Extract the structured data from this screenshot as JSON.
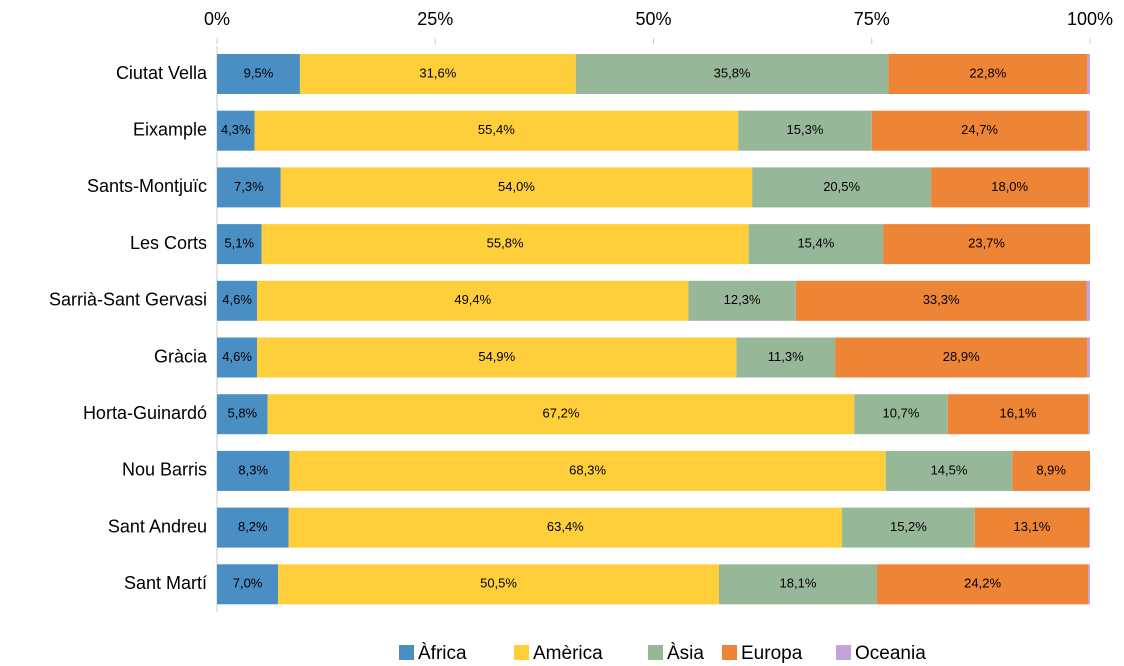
{
  "chart_data": {
    "type": "stacked-barh",
    "categories": [
      "Ciutat Vella",
      "Eixample",
      "Sants-Montjuïc",
      "Les Corts",
      "Sarrià-Sant Gervasi",
      "Gràcia",
      "Horta-Guinardó",
      "Nou Barris",
      "Sant Andreu",
      "Sant Martí"
    ],
    "series": [
      {
        "name": "Àfrica",
        "color": "#4a8fc3",
        "values": [
          9.5,
          4.3,
          7.3,
          5.1,
          4.6,
          4.6,
          5.8,
          8.3,
          8.2,
          7.0
        ],
        "value_labels": [
          "9,5%",
          "4,3%",
          "7,3%",
          "5,1%",
          "4,6%",
          "4,6%",
          "5,8%",
          "8,3%",
          "8,2%",
          "7,0%"
        ]
      },
      {
        "name": "Amèrica",
        "color": "#fecf3a",
        "values": [
          31.6,
          55.4,
          54.0,
          55.8,
          49.4,
          54.9,
          67.2,
          68.3,
          63.4,
          50.5
        ],
        "value_labels": [
          "31,6%",
          "55,4%",
          "54,0%",
          "55,8%",
          "49,4%",
          "54,9%",
          "67,2%",
          "68,3%",
          "63,4%",
          "50,5%"
        ]
      },
      {
        "name": "Àsia",
        "color": "#97b799",
        "values": [
          35.8,
          15.3,
          20.5,
          15.4,
          12.3,
          11.3,
          10.7,
          14.5,
          15.2,
          18.1
        ],
        "value_labels": [
          "35,8%",
          "15,3%",
          "20,5%",
          "15,4%",
          "12,3%",
          "11,3%",
          "10,7%",
          "14,5%",
          "15,2%",
          "18,1%"
        ]
      },
      {
        "name": "Europa",
        "color": "#ee8435",
        "values": [
          22.8,
          24.7,
          18.0,
          23.7,
          33.3,
          28.9,
          16.1,
          8.9,
          13.1,
          24.2
        ],
        "value_labels": [
          "22,8%",
          "24,7%",
          "18,0%",
          "23,7%",
          "33,3%",
          "28,9%",
          "16,1%",
          "8,9%",
          "13,1%",
          "24,2%"
        ]
      },
      {
        "name": "Oceania",
        "color": "#c3a3d9",
        "values": [
          0.3,
          0.3,
          0.2,
          0.0,
          0.4,
          0.3,
          0.2,
          0.0,
          0.1,
          0.2
        ]
      }
    ],
    "xlim": [
      0,
      100
    ],
    "xticks": [
      {
        "value": 0,
        "label": "0%"
      },
      {
        "value": 25,
        "label": "25%"
      },
      {
        "value": 50,
        "label": "50%"
      },
      {
        "value": 75,
        "label": "75%"
      },
      {
        "value": 100,
        "label": "100%"
      }
    ],
    "grid": false,
    "legend": "bottom"
  }
}
